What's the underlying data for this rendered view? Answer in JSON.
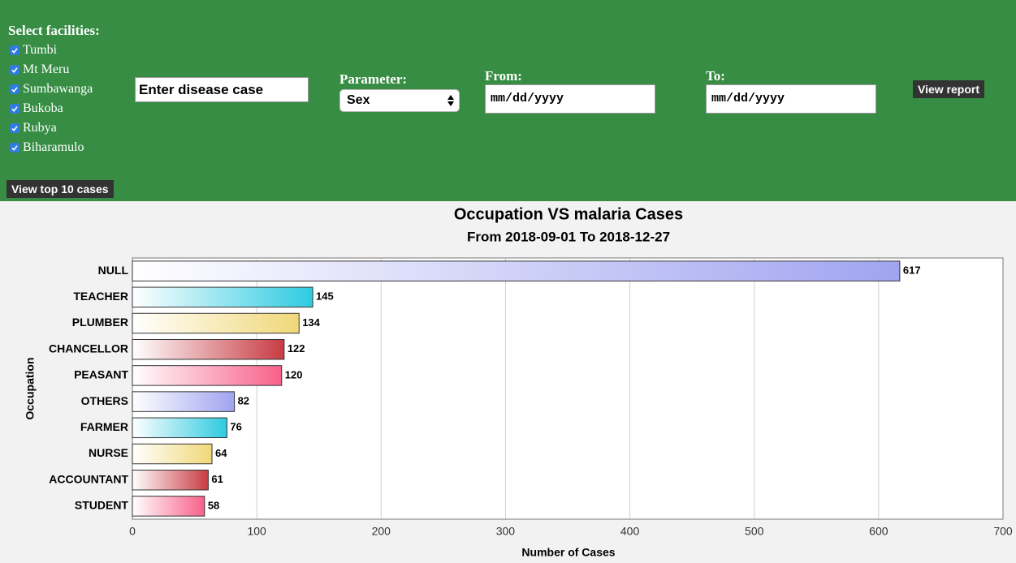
{
  "header": {
    "facilities_label": "Select facilities:",
    "facilities": [
      {
        "label": "Tumbi",
        "checked": true
      },
      {
        "label": "Mt Meru",
        "checked": true
      },
      {
        "label": "Sumbawanga",
        "checked": true
      },
      {
        "label": "Bukoba",
        "checked": true
      },
      {
        "label": "Rubya",
        "checked": true
      },
      {
        "label": "Biharamulo",
        "checked": true
      }
    ],
    "disease_input": "Enter disease case",
    "parameter_label": "Parameter:",
    "parameter_value": "Sex",
    "from_label": "From:",
    "from_placeholder": "mm/dd/yyyy",
    "to_label": "To:",
    "to_placeholder": "mm/dd/yyyy",
    "view_report": "View report",
    "view_top": "View top 10 cases"
  },
  "chart_data": {
    "type": "barh",
    "title": "Occupation VS malaria Cases",
    "subtitle": "From 2018-09-01 To 2018-12-27",
    "y_label": "Occupation",
    "x_label": "Number of Cases",
    "categories": [
      "NULL",
      "TEACHER",
      "PLUMBER",
      "CHANCELLOR",
      "PEASANT",
      "OTHERS",
      "FARMER",
      "NURSE",
      "ACCOUNTANT",
      "STUDENT"
    ],
    "values": [
      617,
      145,
      134,
      122,
      120,
      82,
      76,
      64,
      61,
      58
    ],
    "colors": [
      "#a0a4f0",
      "#2ecbe0",
      "#f0d878",
      "#c83c44",
      "#f8608a",
      "#a0a4f0",
      "#2ecbe0",
      "#f0d878",
      "#c83c44",
      "#f8608a"
    ],
    "xlim": [
      0,
      700
    ],
    "xticks": [
      0,
      100,
      200,
      300,
      400,
      500,
      600,
      700
    ],
    "grid": true
  }
}
